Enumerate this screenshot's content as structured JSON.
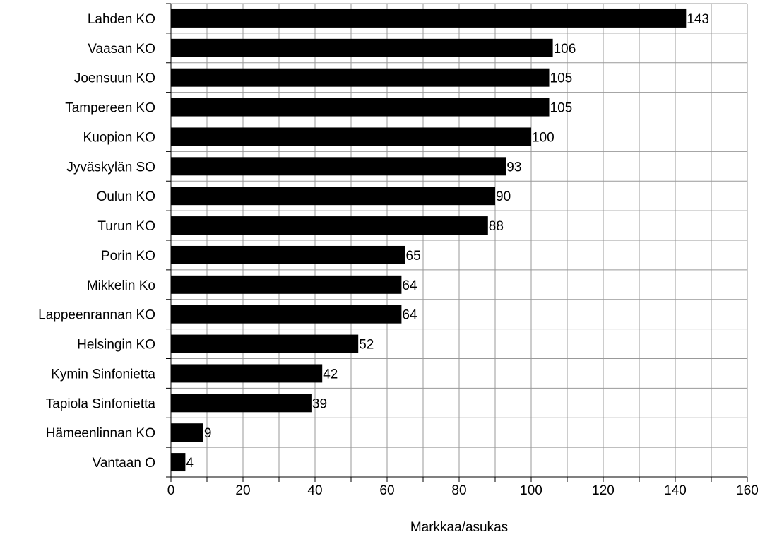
{
  "chart_data": {
    "type": "bar",
    "orientation": "horizontal",
    "categories": [
      "Lahden KO",
      "Vaasan KO",
      "Joensuun KO",
      "Tampereen KO",
      "Kuopion KO",
      "Jyväskylän SO",
      "Oulun KO",
      "Turun KO",
      "Porin KO",
      "Mikkelin Ko",
      "Lappeenrannan KO",
      "Helsingin KO",
      "Kymin Sinfonietta",
      "Tapiola Sinfonietta",
      "Hämeenlinnan KO",
      "Vantaan O"
    ],
    "values": [
      143,
      106,
      105,
      105,
      100,
      93,
      90,
      88,
      65,
      64,
      64,
      52,
      42,
      39,
      9,
      4
    ],
    "value_labels": [
      "143",
      "106",
      "105",
      "105",
      "100",
      "93",
      "90",
      "88",
      "65",
      "64",
      "64",
      "52",
      "42",
      "39",
      "9",
      "4"
    ],
    "xlabel": "Markkaa/asukas",
    "xlim": [
      0,
      160
    ],
    "xticks": [
      0,
      20,
      40,
      60,
      80,
      100,
      120,
      140,
      160
    ],
    "xtick_labels": [
      "0",
      "20",
      "40",
      "60",
      "80",
      "100",
      "120",
      "140",
      "160"
    ],
    "grid": true,
    "bar_color": "#000000",
    "grid_color": "#999999"
  }
}
